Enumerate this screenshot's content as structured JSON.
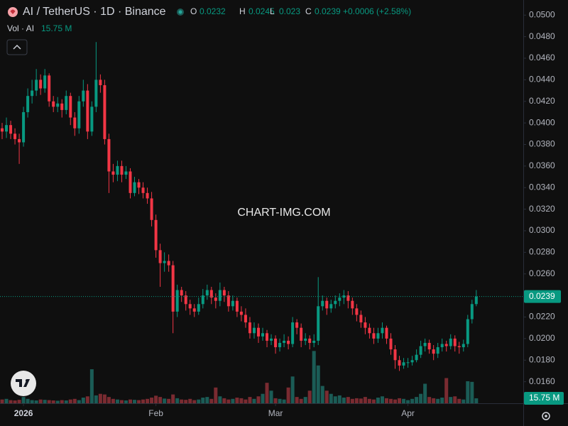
{
  "chart_data": {
    "type": "candlestick",
    "title": "AI / TetherUS · 1D · Binance",
    "ohlc_labels": [
      "O",
      "H",
      "L",
      "C"
    ],
    "change_label": "+0.0006 (+2.58%)",
    "volume_title": "Vol · AI",
    "volume_label": "15.75 M",
    "watermark": "CHART-IMG.COM",
    "up_color": "#089981",
    "down_color": "#f23645",
    "volume_up_color": "#1b5c56",
    "volume_down_color": "#7a2b31",
    "grid": false,
    "xlim": [
      -0.5,
      122
    ],
    "xticks": [
      {
        "value": 5,
        "label": "2026"
      },
      {
        "value": 36,
        "label": "Feb"
      },
      {
        "value": 64,
        "label": "Mar"
      },
      {
        "value": 95,
        "label": "Apr"
      }
    ],
    "ylim": [
      0.014,
      0.0514
    ],
    "yticks": [
      {
        "value": 0.016,
        "label": "0.0160"
      },
      {
        "value": 0.018,
        "label": "0.0180"
      },
      {
        "value": 0.02,
        "label": "0.0200"
      },
      {
        "value": 0.022,
        "label": "0.0220"
      },
      {
        "value": 0.024,
        "label": "0.0240"
      },
      {
        "value": 0.026,
        "label": "0.0260"
      },
      {
        "value": 0.028,
        "label": "0.0280"
      },
      {
        "value": 0.03,
        "label": "0.0300"
      },
      {
        "value": 0.032,
        "label": "0.0320"
      },
      {
        "value": 0.034,
        "label": "0.0340"
      },
      {
        "value": 0.036,
        "label": "0.0360"
      },
      {
        "value": 0.038,
        "label": "0.0380"
      },
      {
        "value": 0.04,
        "label": "0.0400"
      },
      {
        "value": 0.042,
        "label": "0.0420"
      },
      {
        "value": 0.044,
        "label": "0.0440"
      },
      {
        "value": 0.046,
        "label": "0.0460"
      },
      {
        "value": 0.048,
        "label": "0.0480"
      },
      {
        "value": 0.05,
        "label": "0.0500"
      }
    ],
    "volume_lim": [
      0,
      1280
    ],
    "open": [
      0.0395,
      0.0392,
      0.0398,
      0.039,
      0.0385,
      0.0382,
      0.041,
      0.0425,
      0.043,
      0.044,
      0.0432,
      0.0444,
      0.042,
      0.0415,
      0.0418,
      0.0412,
      0.0425,
      0.0405,
      0.0395,
      0.042,
      0.043,
      0.0392,
      0.0415,
      0.044,
      0.0435,
      0.0385,
      0.0355,
      0.0352,
      0.036,
      0.0352,
      0.0355,
      0.0335,
      0.0345,
      0.034,
      0.0335,
      0.033,
      0.031,
      0.0282,
      0.027,
      0.0272,
      0.0268,
      0.0225,
      0.0245,
      0.024,
      0.0232,
      0.0228,
      0.0225,
      0.0232,
      0.024,
      0.0245,
      0.0238,
      0.0235,
      0.0245,
      0.024,
      0.023,
      0.0235,
      0.0225,
      0.0222,
      0.0215,
      0.0205,
      0.021,
      0.0202,
      0.0205,
      0.0198,
      0.02,
      0.0192,
      0.0196,
      0.0198,
      0.0195,
      0.0215,
      0.021,
      0.0198,
      0.02,
      0.0196,
      0.0198,
      0.023,
      0.0235,
      0.0228,
      0.0232,
      0.0235,
      0.0238,
      0.024,
      0.0235,
      0.0228,
      0.0222,
      0.0215,
      0.021,
      0.0205,
      0.02,
      0.0205,
      0.021,
      0.02,
      0.019,
      0.018,
      0.0175,
      0.0178,
      0.0178,
      0.018,
      0.0185,
      0.0193,
      0.0196,
      0.019,
      0.0186,
      0.0192,
      0.0195,
      0.0193,
      0.02,
      0.0193,
      0.0192,
      0.0195,
      0.0218,
      0.0232
    ],
    "high": [
      0.04,
      0.0405,
      0.0402,
      0.0395,
      0.039,
      0.0415,
      0.0432,
      0.044,
      0.045,
      0.0445,
      0.045,
      0.0446,
      0.0425,
      0.0424,
      0.0422,
      0.043,
      0.0428,
      0.041,
      0.0425,
      0.044,
      0.0436,
      0.042,
      0.0475,
      0.0445,
      0.044,
      0.039,
      0.0362,
      0.0365,
      0.0365,
      0.036,
      0.0358,
      0.035,
      0.0348,
      0.0345,
      0.034,
      0.0336,
      0.0315,
      0.0288,
      0.028,
      0.0278,
      0.0272,
      0.025,
      0.0248,
      0.0244,
      0.0236,
      0.0232,
      0.0238,
      0.0246,
      0.025,
      0.0248,
      0.0242,
      0.0252,
      0.0248,
      0.0244,
      0.024,
      0.0238,
      0.023,
      0.0228,
      0.022,
      0.0215,
      0.0214,
      0.021,
      0.0208,
      0.0204,
      0.0203,
      0.02,
      0.0204,
      0.0202,
      0.022,
      0.0218,
      0.0214,
      0.0205,
      0.0203,
      0.0204,
      0.0257,
      0.024,
      0.0238,
      0.0236,
      0.024,
      0.0242,
      0.0245,
      0.0244,
      0.0238,
      0.0232,
      0.0226,
      0.022,
      0.0214,
      0.021,
      0.021,
      0.0215,
      0.0212,
      0.0205,
      0.0194,
      0.0184,
      0.0182,
      0.0182,
      0.0184,
      0.019,
      0.0198,
      0.02,
      0.0199,
      0.0194,
      0.0196,
      0.02,
      0.0198,
      0.0204,
      0.0203,
      0.0197,
      0.0199,
      0.0222,
      0.0236,
      0.0245
    ],
    "low": [
      0.0385,
      0.0386,
      0.0385,
      0.038,
      0.0362,
      0.0378,
      0.0405,
      0.0418,
      0.0425,
      0.0426,
      0.0428,
      0.0415,
      0.041,
      0.041,
      0.0405,
      0.0408,
      0.0398,
      0.0388,
      0.039,
      0.0415,
      0.0385,
      0.0388,
      0.041,
      0.0428,
      0.038,
      0.0335,
      0.0345,
      0.0346,
      0.0345,
      0.0348,
      0.033,
      0.0332,
      0.0334,
      0.033,
      0.0325,
      0.0304,
      0.0275,
      0.0248,
      0.0262,
      0.0262,
      0.0205,
      0.022,
      0.0234,
      0.0226,
      0.0222,
      0.022,
      0.0222,
      0.0228,
      0.0236,
      0.0232,
      0.0228,
      0.023,
      0.0234,
      0.0225,
      0.0226,
      0.022,
      0.0216,
      0.021,
      0.02,
      0.02,
      0.0196,
      0.0198,
      0.0192,
      0.0194,
      0.0186,
      0.0188,
      0.0192,
      0.019,
      0.0192,
      0.0204,
      0.0192,
      0.0194,
      0.019,
      0.0192,
      0.0194,
      0.0226,
      0.0222,
      0.0224,
      0.0228,
      0.023,
      0.0232,
      0.0228,
      0.0222,
      0.0216,
      0.021,
      0.0204,
      0.02,
      0.0195,
      0.0196,
      0.02,
      0.0195,
      0.0185,
      0.0172,
      0.017,
      0.0172,
      0.0173,
      0.0175,
      0.0178,
      0.0182,
      0.0188,
      0.0186,
      0.018,
      0.0182,
      0.0188,
      0.0188,
      0.019,
      0.0188,
      0.0186,
      0.0188,
      0.0192,
      0.0214,
      0.023
    ],
    "close": [
      0.0392,
      0.0398,
      0.039,
      0.0385,
      0.0382,
      0.041,
      0.0425,
      0.043,
      0.044,
      0.0432,
      0.0444,
      0.042,
      0.0415,
      0.0418,
      0.0412,
      0.0425,
      0.0405,
      0.0395,
      0.042,
      0.043,
      0.0392,
      0.0415,
      0.044,
      0.0435,
      0.0385,
      0.0355,
      0.0352,
      0.036,
      0.0352,
      0.0355,
      0.0335,
      0.0345,
      0.034,
      0.0335,
      0.033,
      0.031,
      0.0282,
      0.027,
      0.0272,
      0.0268,
      0.0225,
      0.0245,
      0.024,
      0.0232,
      0.0228,
      0.0225,
      0.0232,
      0.024,
      0.0245,
      0.0238,
      0.0235,
      0.0245,
      0.024,
      0.023,
      0.0235,
      0.0225,
      0.0222,
      0.0215,
      0.0205,
      0.021,
      0.0202,
      0.0205,
      0.0198,
      0.02,
      0.0192,
      0.0196,
      0.0198,
      0.0195,
      0.0215,
      0.021,
      0.0198,
      0.02,
      0.0196,
      0.0198,
      0.023,
      0.0235,
      0.0228,
      0.0232,
      0.0235,
      0.0238,
      0.024,
      0.0235,
      0.0228,
      0.0222,
      0.0215,
      0.021,
      0.0205,
      0.02,
      0.0205,
      0.021,
      0.02,
      0.019,
      0.018,
      0.0175,
      0.0178,
      0.0178,
      0.018,
      0.0185,
      0.0193,
      0.0196,
      0.019,
      0.0186,
      0.0192,
      0.0195,
      0.0193,
      0.02,
      0.0193,
      0.0192,
      0.0195,
      0.0218,
      0.0232,
      0.0239
    ],
    "volume": [
      12,
      14,
      10,
      9,
      11,
      20,
      14,
      10,
      9,
      12,
      11,
      10,
      9,
      8,
      10,
      9,
      12,
      14,
      10,
      18,
      22,
      108,
      25,
      30,
      28,
      20,
      14,
      12,
      10,
      9,
      12,
      11,
      10,
      12,
      14,
      18,
      24,
      20,
      15,
      14,
      28,
      16,
      12,
      11,
      14,
      10,
      12,
      18,
      20,
      14,
      50,
      22,
      16,
      12,
      14,
      18,
      16,
      12,
      20,
      14,
      22,
      30,
      65,
      40,
      16,
      14,
      12,
      50,
      85,
      20,
      14,
      20,
      40,
      166,
      120,
      55,
      40,
      30,
      22,
      25,
      18,
      20,
      14,
      16,
      15,
      20,
      14,
      12,
      18,
      22,
      16,
      14,
      12,
      16,
      14,
      10,
      14,
      20,
      30,
      62,
      20,
      16,
      14,
      18,
      80,
      20,
      22,
      14,
      12,
      70,
      68,
      15.75
    ]
  }
}
